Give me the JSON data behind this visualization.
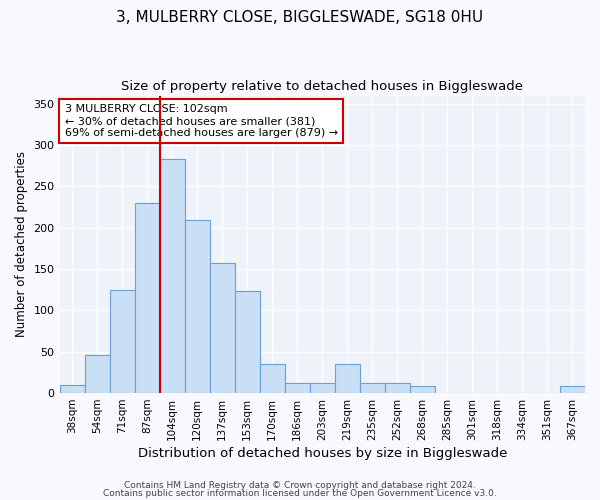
{
  "title": "3, MULBERRY CLOSE, BIGGLESWADE, SG18 0HU",
  "subtitle": "Size of property relative to detached houses in Biggleswade",
  "xlabel": "Distribution of detached houses by size in Biggleswade",
  "ylabel": "Number of detached properties",
  "footnote1": "Contains HM Land Registry data © Crown copyright and database right 2024.",
  "footnote2": "Contains public sector information licensed under the Open Government Licence v3.0.",
  "categories": [
    "38sqm",
    "54sqm",
    "71sqm",
    "87sqm",
    "104sqm",
    "120sqm",
    "137sqm",
    "153sqm",
    "170sqm",
    "186sqm",
    "203sqm",
    "219sqm",
    "235sqm",
    "252sqm",
    "268sqm",
    "285sqm",
    "301sqm",
    "318sqm",
    "334sqm",
    "351sqm",
    "367sqm"
  ],
  "values": [
    10,
    46,
    125,
    230,
    283,
    210,
    157,
    124,
    35,
    12,
    12,
    35,
    12,
    12,
    9,
    0,
    0,
    0,
    0,
    0,
    8
  ],
  "bar_color": "#c9dff5",
  "bar_edge_color": "#6b9fd4",
  "vline_x_index": 4,
  "vline_color": "#cc0000",
  "annotation_text": "3 MULBERRY CLOSE: 102sqm\n← 30% of detached houses are smaller (381)\n69% of semi-detached houses are larger (879) →",
  "annotation_box_color": "#ffffff",
  "annotation_box_edge_color": "#cc0000",
  "ylim": [
    0,
    360
  ],
  "yticks": [
    0,
    50,
    100,
    150,
    200,
    250,
    300,
    350
  ],
  "plot_bg_color": "#eef2f9",
  "grid_color": "#ffffff",
  "fig_bg_color": "#f8f8ff",
  "title_fontsize": 11,
  "subtitle_fontsize": 9.5,
  "xlabel_fontsize": 9.5,
  "ylabel_fontsize": 8.5,
  "tick_fontsize": 7.5,
  "annotation_fontsize": 8,
  "footnote_fontsize": 6.5
}
